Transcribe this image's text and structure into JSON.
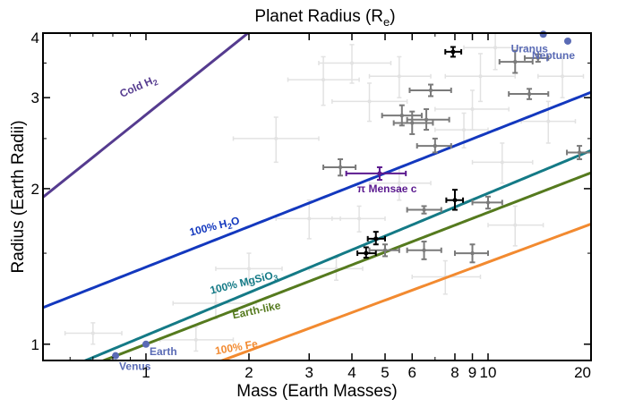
{
  "chart_data": {
    "type": "scatter",
    "title": "Planet Radius (R",
    "title_sub": "e",
    "title_close": ")",
    "xlabel": "Mass (Earth Masses)",
    "ylabel": "Radius (Earth Radii)",
    "x_scale": "log",
    "y_scale": "log",
    "xlim": [
      0.5,
      20
    ],
    "ylim": [
      0.93,
      4
    ],
    "x_ticks": [
      {
        "v": 1,
        "label": "1"
      },
      {
        "v": 2,
        "label": "2"
      },
      {
        "v": 3,
        "label": "3"
      },
      {
        "v": 4,
        "label": "4"
      },
      {
        "v": 5,
        "label": "5"
      },
      {
        "v": 6,
        "label": "6"
      },
      {
        "v": 8,
        "label": "8"
      },
      {
        "v": 9,
        "label": "9"
      },
      {
        "v": 10,
        "label": "10"
      },
      {
        "v": 20,
        "label": "20"
      }
    ],
    "x_minor_ticks": [
      0.6,
      0.7,
      0.8,
      0.9,
      7
    ],
    "y_ticks": [
      {
        "v": 1,
        "label": "1"
      },
      {
        "v": 2,
        "label": "2"
      },
      {
        "v": 3,
        "label": "3"
      },
      {
        "v": 4,
        "label": "4"
      }
    ],
    "y_minor_ticks": [
      1.5,
      2.5,
      3.5
    ],
    "curves": [
      {
        "name": "Cold H",
        "name_sub": "2",
        "color": "#553b8f",
        "coef": 2.78,
        "exp": 0.53,
        "label_x": 0.85,
        "label_y": 3.0,
        "angle": -24
      },
      {
        "name": "100% H",
        "name_sub": "2",
        "name_tail": "O",
        "color": "#1338be",
        "coef": 1.41,
        "exp": 0.26,
        "label_x": 1.35,
        "label_y": 1.62,
        "angle": -14
      },
      {
        "name": "100% MgSiO",
        "name_sub": "3",
        "color": "#147a86",
        "coef": 1.04,
        "exp": 0.275,
        "label_x": 1.55,
        "label_y": 1.25,
        "angle": -14
      },
      {
        "name": "Earth-like",
        "color": "#557a1e",
        "coef": 1.0,
        "exp": 0.255,
        "label_x": 1.8,
        "label_y": 1.12,
        "angle": -12
      },
      {
        "name": "100% Fe",
        "color": "#f28a30",
        "coef": 0.82,
        "exp": 0.245,
        "label_x": 1.6,
        "label_y": 0.955,
        "angle": -10
      }
    ],
    "solar_system": [
      {
        "name": "Venus",
        "mass": 0.815,
        "radius": 0.95,
        "label_dx": 4,
        "label_dy": 16
      },
      {
        "name": "Earth",
        "mass": 1.0,
        "radius": 1.0,
        "label_dx": 4,
        "label_dy": 12
      },
      {
        "name": "Uranus",
        "mass": 14.5,
        "radius": 3.98,
        "label_dx": -36,
        "label_dy": 20
      },
      {
        "name": "Neptune",
        "mass": 17.1,
        "radius": 3.86,
        "label_dx": -40,
        "label_dy": 20
      }
    ],
    "highlight": {
      "name": "π Mensae c",
      "mass": 4.82,
      "radius": 2.14,
      "xerr": [
        3.85,
        5.75
      ],
      "yerr": [
        2.08,
        2.2
      ],
      "color": "#5b1a8f",
      "label_dx": -25,
      "label_dy": 21
    },
    "black_points": [
      {
        "mass": 7.9,
        "radius": 3.68,
        "xerr": [
          7.5,
          8.35
        ],
        "yerr": [
          3.6,
          3.76
        ]
      },
      {
        "mass": 8.0,
        "radius": 1.9,
        "xerr": [
          7.55,
          8.45
        ],
        "yerr": [
          1.82,
          1.99
        ]
      },
      {
        "mass": 4.7,
        "radius": 1.6,
        "xerr": [
          4.45,
          5.0
        ],
        "yerr": [
          1.56,
          1.65
        ]
      },
      {
        "mass": 4.4,
        "radius": 1.5,
        "xerr": [
          4.15,
          4.7
        ],
        "yerr": [
          1.47,
          1.54
        ]
      }
    ],
    "dark_gray_points": [
      {
        "mass": 14.0,
        "radius": 3.58,
        "xerr": [
          12.8,
          15.0
        ],
        "yerr": [
          3.52,
          3.64
        ]
      },
      {
        "mass": 12.0,
        "radius": 3.52,
        "xerr": [
          10.8,
          13.5
        ],
        "yerr": [
          3.35,
          3.7
        ]
      },
      {
        "mass": 6.8,
        "radius": 3.1,
        "xerr": [
          5.9,
          7.8
        ],
        "yerr": [
          3.02,
          3.18
        ]
      },
      {
        "mass": 5.6,
        "radius": 2.77,
        "xerr": [
          4.9,
          6.4
        ],
        "yerr": [
          2.65,
          2.9
        ]
      },
      {
        "mass": 6.6,
        "radius": 2.72,
        "xerr": [
          5.8,
          7.7
        ],
        "yerr": [
          2.6,
          2.85
        ]
      },
      {
        "mass": 6.0,
        "radius": 2.68,
        "xerr": [
          5.3,
          6.9
        ],
        "yerr": [
          2.55,
          2.82
        ]
      },
      {
        "mass": 7.0,
        "radius": 2.42,
        "xerr": [
          6.2,
          7.8
        ],
        "yerr": [
          2.35,
          2.5
        ]
      },
      {
        "mass": 3.7,
        "radius": 2.2,
        "xerr": [
          3.3,
          4.1
        ],
        "yerr": [
          2.12,
          2.28
        ]
      },
      {
        "mass": 13.2,
        "radius": 3.05,
        "xerr": [
          11.5,
          15.0
        ],
        "yerr": [
          2.98,
          3.12
        ]
      },
      {
        "mass": 18.5,
        "radius": 2.35,
        "xerr": [
          17.0,
          20.0
        ],
        "yerr": [
          2.28,
          2.42
        ]
      },
      {
        "mass": 6.5,
        "radius": 1.82,
        "xerr": [
          5.8,
          7.3
        ],
        "yerr": [
          1.79,
          1.85
        ]
      },
      {
        "mass": 6.5,
        "radius": 1.52,
        "xerr": [
          5.8,
          7.3
        ],
        "yerr": [
          1.46,
          1.58
        ]
      },
      {
        "mass": 5.0,
        "radius": 1.52,
        "xerr": [
          4.5,
          5.5
        ],
        "yerr": [
          1.48,
          1.56
        ]
      },
      {
        "mass": 9.0,
        "radius": 1.5,
        "xerr": [
          8.0,
          10.0
        ],
        "yerr": [
          1.44,
          1.56
        ]
      },
      {
        "mass": 10.0,
        "radius": 1.88,
        "xerr": [
          9.0,
          11.0
        ],
        "yerr": [
          1.83,
          1.93
        ]
      }
    ],
    "light_gray_points": [
      {
        "mass": 4.0,
        "radius": 3.5,
        "xerr": [
          3.2,
          5.2
        ],
        "yerr": [
          3.2,
          3.8
        ]
      },
      {
        "mass": 5.5,
        "radius": 3.3,
        "xerr": [
          4.5,
          6.8
        ],
        "yerr": [
          3.0,
          3.6
        ]
      },
      {
        "mass": 4.5,
        "radius": 2.95,
        "xerr": [
          3.5,
          5.8
        ],
        "yerr": [
          2.7,
          3.2
        ]
      },
      {
        "mass": 3.3,
        "radius": 3.25,
        "xerr": [
          2.6,
          4.2
        ],
        "yerr": [
          2.9,
          3.6
        ]
      },
      {
        "mass": 9.5,
        "radius": 3.3,
        "xerr": [
          7.5,
          12.0
        ],
        "yerr": [
          2.95,
          3.65
        ]
      },
      {
        "mass": 10.5,
        "radius": 3.75,
        "xerr": [
          8.5,
          13.0
        ],
        "yerr": [
          3.4,
          4.0
        ]
      },
      {
        "mass": 15.0,
        "radius": 2.7,
        "xerr": [
          12.5,
          18.0
        ],
        "yerr": [
          2.45,
          2.95
        ]
      },
      {
        "mass": 9.0,
        "radius": 2.85,
        "xerr": [
          7.0,
          11.5
        ],
        "yerr": [
          2.6,
          3.1
        ]
      },
      {
        "mass": 11.0,
        "radius": 2.25,
        "xerr": [
          9.0,
          13.5
        ],
        "yerr": [
          2.05,
          2.45
        ]
      },
      {
        "mass": 2.4,
        "radius": 2.5,
        "xerr": [
          1.8,
          3.2
        ],
        "yerr": [
          2.25,
          2.75
        ]
      },
      {
        "mass": 3.0,
        "radius": 1.75,
        "xerr": [
          2.4,
          3.7
        ],
        "yerr": [
          1.6,
          1.9
        ]
      },
      {
        "mass": 2.0,
        "radius": 1.4,
        "xerr": [
          1.6,
          2.5
        ],
        "yerr": [
          1.3,
          1.5
        ]
      },
      {
        "mass": 1.6,
        "radius": 1.2,
        "xerr": [
          1.2,
          2.1
        ],
        "yerr": [
          1.12,
          1.28
        ]
      },
      {
        "mass": 0.7,
        "radius": 1.05,
        "xerr": [
          0.58,
          0.85
        ],
        "yerr": [
          1.0,
          1.1
        ]
      },
      {
        "mass": 1.4,
        "radius": 1.02,
        "xerr": [
          1.1,
          1.8
        ],
        "yerr": [
          0.97,
          1.08
        ]
      },
      {
        "mass": 7.5,
        "radius": 1.35,
        "xerr": [
          6.0,
          9.5
        ],
        "yerr": [
          1.25,
          1.45
        ]
      },
      {
        "mass": 12.0,
        "radius": 1.7,
        "xerr": [
          10.0,
          14.5
        ],
        "yerr": [
          1.55,
          1.85
        ]
      },
      {
        "mass": 5.5,
        "radius": 2.05,
        "xerr": [
          4.5,
          6.8
        ],
        "yerr": [
          1.9,
          2.2
        ]
      },
      {
        "mass": 8.5,
        "radius": 2.6,
        "xerr": [
          7.0,
          10.0
        ],
        "yerr": [
          2.4,
          2.8
        ]
      },
      {
        "mass": 16.5,
        "radius": 3.3,
        "xerr": [
          14.0,
          19.0
        ],
        "yerr": [
          3.0,
          3.6
        ]
      },
      {
        "mass": 4.2,
        "radius": 1.75,
        "xerr": [
          3.5,
          5.0
        ],
        "yerr": [
          1.65,
          1.85
        ]
      },
      {
        "mass": 3.6,
        "radius": 1.4,
        "xerr": [
          3.0,
          4.3
        ],
        "yerr": [
          1.33,
          1.47
        ]
      }
    ]
  }
}
